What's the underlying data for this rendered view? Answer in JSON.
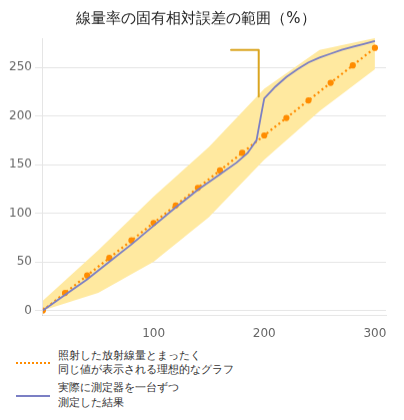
{
  "chart_data": {
    "type": "line",
    "title": "線量率の固有相対誤差の範囲（%）",
    "xlim": [
      0,
      310
    ],
    "xticks": [
      100,
      200,
      300
    ],
    "ylim": [
      -5,
      280
    ],
    "yticks": [
      0,
      50,
      100,
      150,
      200,
      250
    ],
    "grid": "y",
    "legend": "bottom",
    "series": [
      {
        "name": "照射した放射線量とまったく\n同じ値が表示される理想的なグラフ",
        "color": "#FF8C00",
        "line_style": "dotted",
        "marker": "o",
        "x": [
          0,
          20,
          40,
          60,
          80,
          100,
          120,
          140,
          160,
          180,
          200,
          220,
          240,
          260,
          280,
          300
        ],
        "values": [
          0,
          18,
          36,
          54,
          72,
          90,
          108,
          126,
          144,
          162,
          180,
          198,
          216,
          234,
          252,
          270
        ]
      },
      {
        "name": "実際に測定器を一台ずつ\n測定した結果",
        "color": "#7B7FC4",
        "line_style": "solid",
        "marker": "none",
        "x": [
          0,
          20,
          40,
          60,
          80,
          100,
          120,
          140,
          160,
          175,
          185,
          193,
          197,
          200,
          210,
          220,
          230,
          240,
          250,
          260,
          270,
          280,
          290,
          300
        ],
        "values": [
          0,
          16,
          32,
          50,
          68,
          87,
          106,
          124,
          140,
          152,
          162,
          175,
          200,
          218,
          230,
          240,
          248,
          255,
          260,
          264,
          268,
          271,
          274,
          277
        ]
      }
    ],
    "band": {
      "color": "#FFE9A0",
      "x": [
        0,
        50,
        100,
        150,
        200,
        250,
        300
      ],
      "upper": [
        10,
        62,
        117,
        168,
        228,
        268,
        280
      ],
      "lower": [
        0,
        18,
        50,
        96,
        155,
        205,
        248
      ]
    },
    "annotation": {
      "color": "#DAA520",
      "x": [
        170,
        195,
        195
      ],
      "y": [
        268,
        268,
        220
      ]
    }
  }
}
